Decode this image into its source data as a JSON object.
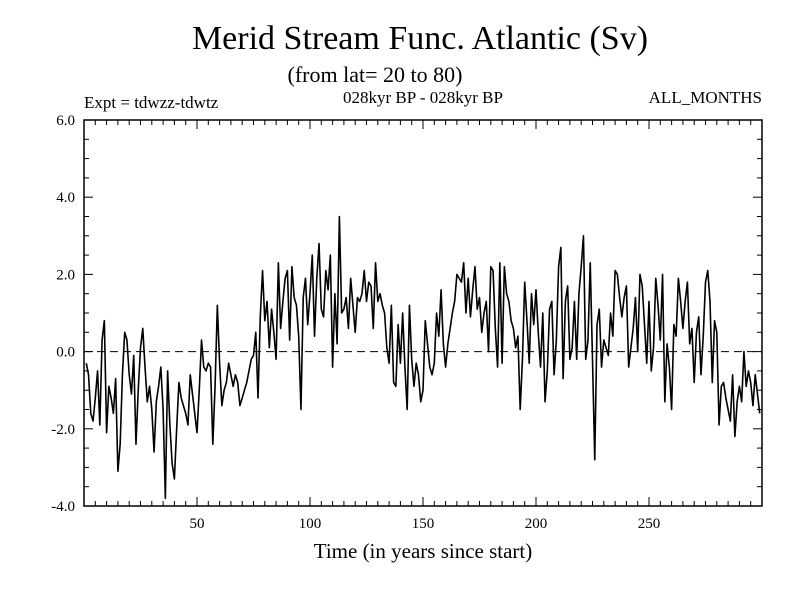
{
  "chart_data": {
    "type": "line",
    "title": "Merid Stream Func. Atlantic (Sv)",
    "subtitle": "(from lat= 20 to 80)",
    "header_left": "Expt = tdwzz-tdwtz",
    "header_center": "028kyr BP - 028kyr BP",
    "header_right": "ALL_MONTHS",
    "xlabel": "Time (in years since start)",
    "ylabel": "",
    "xlim": [
      0,
      300
    ],
    "ylim": [
      -4.0,
      6.0
    ],
    "x_ticks": [
      50,
      100,
      150,
      200,
      250
    ],
    "x_tick_labels": [
      "50",
      "100",
      "150",
      "200",
      "250"
    ],
    "y_ticks": [
      -4.0,
      -2.0,
      0.0,
      2.0,
      4.0,
      6.0
    ],
    "y_tick_labels": [
      "-4.0",
      "-2.0",
      "0.0",
      "2.0",
      "4.0",
      "6.0"
    ],
    "reference_line": 0.0,
    "series": [
      {
        "name": "Merid Stream Func. Atlantic",
        "x_start": 1,
        "x_step": 1,
        "values": [
          -0.3,
          -0.6,
          -1.6,
          -1.8,
          -1.2,
          -0.5,
          -1.9,
          0.3,
          0.8,
          -2.1,
          -0.9,
          -1.2,
          -1.6,
          -0.7,
          -3.1,
          -2.4,
          -0.6,
          0.5,
          0.3,
          -0.6,
          -1.1,
          -0.1,
          -2.4,
          -1.0,
          0.1,
          0.6,
          -0.4,
          -1.3,
          -0.9,
          -1.5,
          -2.6,
          -1.3,
          -0.9,
          -0.4,
          -1.5,
          -3.8,
          -0.5,
          -1.9,
          -2.9,
          -3.3,
          -2.0,
          -0.8,
          -1.2,
          -1.4,
          -1.6,
          -1.9,
          -0.6,
          -1.1,
          -1.6,
          -2.1,
          -1.0,
          0.3,
          -0.4,
          -0.5,
          -0.3,
          -0.4,
          -2.4,
          -0.9,
          1.2,
          -0.3,
          -1.4,
          -1.0,
          -0.8,
          -0.3,
          -0.6,
          -0.9,
          -0.6,
          -0.8,
          -1.4,
          -1.2,
          -1.0,
          -0.8,
          -0.5,
          -0.2,
          -0.1,
          0.5,
          -1.2,
          0.9,
          2.1,
          0.8,
          1.3,
          0.1,
          1.1,
          0.5,
          -0.2,
          2.3,
          0.6,
          1.3,
          1.9,
          2.1,
          0.3,
          2.2,
          1.4,
          1.2,
          0.4,
          -1.5,
          1.4,
          1.9,
          0.7,
          1.5,
          2.5,
          0.4,
          1.9,
          2.8,
          1.1,
          0.9,
          2.1,
          1.6,
          2.5,
          -0.4,
          1.5,
          0.2,
          3.5,
          1.0,
          1.1,
          1.4,
          0.6,
          1.9,
          1.2,
          0.5,
          1.4,
          1.3,
          1.5,
          2.1,
          1.3,
          1.8,
          1.7,
          0.6,
          2.3,
          1.3,
          1.5,
          1.2,
          1.0,
          0.1,
          -0.3,
          1.2,
          -0.8,
          -0.9,
          0.7,
          -0.3,
          1.0,
          -0.4,
          -1.5,
          1.2,
          -0.2,
          -0.9,
          -0.3,
          -0.6,
          -1.3,
          -1.0,
          0.8,
          0.2,
          -0.4,
          -0.6,
          -0.3,
          1.0,
          0.4,
          1.6,
          0.2,
          -0.4,
          0.2,
          0.6,
          1.0,
          1.3,
          2.0,
          1.9,
          1.8,
          2.3,
          1.0,
          1.9,
          0.9,
          1.6,
          2.2,
          1.1,
          1.4,
          0.5,
          1.0,
          1.3,
          0.0,
          2.2,
          2.1,
          0.6,
          -0.4,
          2.3,
          -0.3,
          2.2,
          1.5,
          1.3,
          0.8,
          0.6,
          0.1,
          0.4,
          -1.5,
          -0.2,
          1.8,
          0.8,
          -0.3,
          1.5,
          0.7,
          1.6,
          0.5,
          -0.4,
          1.0,
          -1.3,
          -0.5,
          1.1,
          1.3,
          -0.6,
          0.3,
          2.2,
          2.7,
          -0.7,
          1.3,
          1.7,
          -0.2,
          0.1,
          1.3,
          -0.2,
          1.5,
          2.2,
          3.0,
          -0.2,
          0.3,
          2.3,
          -0.2,
          -2.8,
          0.7,
          1.1,
          -0.4,
          0.3,
          0.1,
          -0.1,
          1.0,
          0.4,
          2.1,
          2.0,
          1.4,
          0.9,
          1.4,
          1.7,
          -0.4,
          0.1,
          0.6,
          1.4,
          0.0,
          2.0,
          1.7,
          0.7,
          -0.3,
          1.3,
          -0.5,
          0.1,
          1.9,
          1.2,
          0.3,
          2.0,
          -1.3,
          0.2,
          -0.4,
          -1.5,
          0.7,
          0.4,
          1.9,
          1.3,
          0.6,
          1.3,
          1.8,
          0.2,
          0.6,
          -0.8,
          0.5,
          0.9,
          -0.6,
          0.4,
          1.8,
          2.1,
          1.3,
          -0.8,
          0.8,
          0.5,
          -1.9,
          -0.9,
          -0.8,
          -1.2,
          -1.5,
          -1.8,
          -0.6,
          -2.2,
          -1.3,
          -0.9,
          -1.3,
          0.0,
          -0.9,
          -0.5,
          -0.8,
          -1.4,
          -0.6,
          -1.1,
          -1.6
        ]
      }
    ]
  }
}
